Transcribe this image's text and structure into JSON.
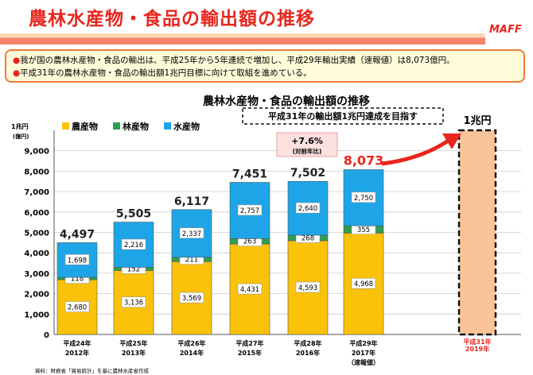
{
  "header": {
    "title": "農林水産物・食品の輸出額の推移",
    "logo": "MAFF"
  },
  "notes": [
    "我が国の農林水産物・食品の輸出は、平成25年から5年連続で増加し、平成29年輸出実績（速報値）は8,073億円。",
    "平成31年の農林水産物・食品の輸出額1兆円目標に向けて取組を進めている。"
  ],
  "chart_data": {
    "type": "bar",
    "stacked": true,
    "title": "農林水産物・食品の輸出額の推移",
    "ylabel_top": "1兆円",
    "yunit": "(億円)",
    "ylim": [
      0,
      10000
    ],
    "yticks": [
      "0",
      "1,000",
      "2,000",
      "3,000",
      "4,000",
      "5,000",
      "6,000",
      "7,000",
      "8,000",
      "9,000"
    ],
    "categories": [
      [
        "平成24年",
        "2012年",
        ""
      ],
      [
        "平成25年",
        "2013年",
        ""
      ],
      [
        "平成26年",
        "2014年",
        ""
      ],
      [
        "平成27年",
        "2015年",
        ""
      ],
      [
        "平成28年",
        "2016年",
        ""
      ],
      [
        "平成29年",
        "2017年",
        "（速報値）"
      ]
    ],
    "series": [
      {
        "name": "農産物",
        "color": "#fbc20a",
        "values": [
          2680,
          3136,
          3569,
          4431,
          4593,
          4968
        ],
        "labels": [
          "2,680",
          "3,136",
          "3,569",
          "4,431",
          "4,593",
          "4,968"
        ]
      },
      {
        "name": "林産物",
        "color": "#2e9e52",
        "values": [
          118,
          152,
          211,
          263,
          268,
          355
        ],
        "labels": [
          "118",
          "152",
          "211",
          "263",
          "268",
          "355"
        ]
      },
      {
        "name": "水産物",
        "color": "#1ea5e8",
        "values": [
          1698,
          2216,
          2337,
          2757,
          2640,
          2750
        ],
        "labels": [
          "1,698",
          "2,216",
          "2,337",
          "2,757",
          "2,640",
          "2,750"
        ]
      }
    ],
    "totals": [
      "4,497",
      "5,505",
      "6,117",
      "7,451",
      "7,502",
      "8,073"
    ],
    "target": {
      "value": 10000,
      "label": "1兆円",
      "category": [
        "平成31年",
        "2019年"
      ],
      "color": "#f9c49a"
    },
    "target_banner": "平成31年の輸出額1兆円達成を目指す",
    "growth": {
      "value": "+7.6%",
      "sub": "(対前年比)"
    },
    "source": "資料：財務省「貿易統計」を基に農林水産省作成"
  }
}
